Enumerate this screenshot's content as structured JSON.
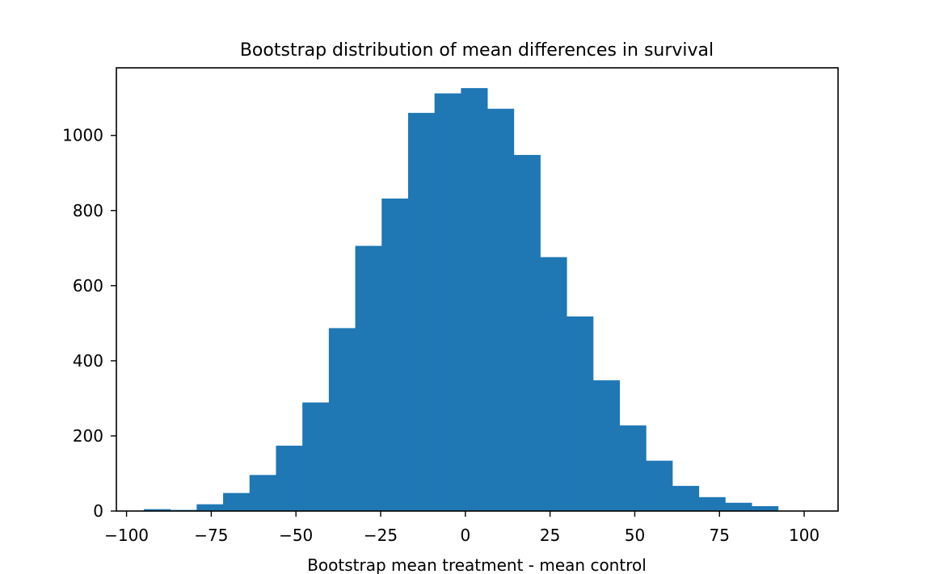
{
  "chart_data": {
    "type": "bar",
    "subtype": "histogram",
    "title": "Bootstrap distribution of mean differences in survival",
    "xlabel": "Bootstrap mean treatment - mean control",
    "ylabel": "",
    "xlim": [
      -103.0,
      110.0
    ],
    "ylim": [
      0,
      1180
    ],
    "grid": false,
    "legend": "none",
    "bar_color": "#1f77b4",
    "x_ticks": [
      -100,
      -75,
      -50,
      -25,
      0,
      25,
      50,
      75,
      100
    ],
    "x_tick_labels": [
      "−100",
      "−75",
      "−50",
      "−25",
      "0",
      "25",
      "50",
      "75",
      "100"
    ],
    "y_ticks": [
      0,
      200,
      400,
      600,
      800,
      1000
    ],
    "y_tick_labels": [
      "0",
      "200",
      "400",
      "600",
      "800",
      "1000"
    ],
    "bins": [
      {
        "x0": -94.9,
        "x1": -87.1,
        "count": 5
      },
      {
        "x0": -87.1,
        "x1": -79.3,
        "count": 3
      },
      {
        "x0": -79.3,
        "x1": -71.5,
        "count": 18
      },
      {
        "x0": -71.5,
        "x1": -63.7,
        "count": 48
      },
      {
        "x0": -63.7,
        "x1": -55.9,
        "count": 96
      },
      {
        "x0": -55.9,
        "x1": -48.1,
        "count": 174
      },
      {
        "x0": -48.1,
        "x1": -40.3,
        "count": 289
      },
      {
        "x0": -40.3,
        "x1": -32.5,
        "count": 487
      },
      {
        "x0": -32.5,
        "x1": -24.7,
        "count": 706
      },
      {
        "x0": -24.7,
        "x1": -16.9,
        "count": 832
      },
      {
        "x0": -16.9,
        "x1": -9.1,
        "count": 1060
      },
      {
        "x0": -9.1,
        "x1": -1.3,
        "count": 1112
      },
      {
        "x0": -1.3,
        "x1": 6.5,
        "count": 1126
      },
      {
        "x0": 6.5,
        "x1": 14.3,
        "count": 1071
      },
      {
        "x0": 14.3,
        "x1": 22.1,
        "count": 948
      },
      {
        "x0": 22.1,
        "x1": 29.9,
        "count": 676
      },
      {
        "x0": 29.9,
        "x1": 37.7,
        "count": 518
      },
      {
        "x0": 37.7,
        "x1": 45.5,
        "count": 348
      },
      {
        "x0": 45.5,
        "x1": 53.3,
        "count": 228
      },
      {
        "x0": 53.3,
        "x1": 61.1,
        "count": 134
      },
      {
        "x0": 61.1,
        "x1": 68.9,
        "count": 67
      },
      {
        "x0": 68.9,
        "x1": 76.7,
        "count": 37
      },
      {
        "x0": 76.7,
        "x1": 84.5,
        "count": 22
      },
      {
        "x0": 84.5,
        "x1": 92.3,
        "count": 13
      },
      {
        "x0": 92.3,
        "x1": 100.1,
        "count": 1
      }
    ]
  }
}
